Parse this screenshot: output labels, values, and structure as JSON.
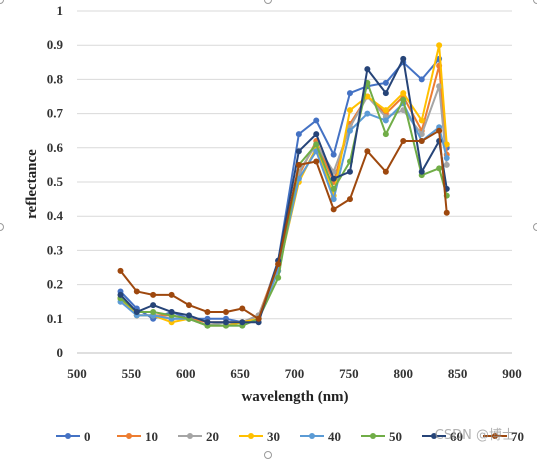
{
  "chart_data": {
    "type": "line",
    "xlabel": "wavelength (nm)",
    "ylabel": "reflectance",
    "xlim": [
      500,
      900
    ],
    "ylim": [
      0,
      1
    ],
    "xticks": [
      "500",
      "550",
      "600",
      "650",
      "700",
      "750",
      "800",
      "850",
      "900"
    ],
    "yticks": [
      "0",
      "0.1",
      "0.2",
      "0.3",
      "0.4",
      "0.5",
      "0.6",
      "0.7",
      "0.8",
      "0.9",
      "1"
    ],
    "grid": "horizontal",
    "legend_position": "bottom",
    "x": [
      540,
      555,
      570,
      587,
      603,
      620,
      637,
      652,
      667,
      685,
      704,
      720,
      736,
      751,
      767,
      784,
      800,
      817,
      833,
      840
    ],
    "series": [
      {
        "name": "0",
        "color": "#4472C4",
        "values": [
          0.18,
          0.13,
          0.1,
          0.12,
          0.1,
          0.1,
          0.1,
          0.09,
          0.1,
          0.27,
          0.64,
          0.68,
          0.58,
          0.76,
          0.78,
          0.79,
          0.85,
          0.8,
          0.86,
          0.6
        ]
      },
      {
        "name": "10",
        "color": "#ED7D31",
        "values": [
          0.16,
          0.11,
          0.11,
          0.11,
          0.1,
          0.09,
          0.09,
          0.09,
          0.11,
          0.26,
          0.52,
          0.62,
          0.5,
          0.67,
          0.75,
          0.7,
          0.75,
          0.65,
          0.84,
          0.58
        ]
      },
      {
        "name": "20",
        "color": "#A5A5A5",
        "values": [
          0.16,
          0.11,
          0.11,
          0.1,
          0.1,
          0.08,
          0.09,
          0.09,
          0.11,
          0.25,
          0.53,
          0.61,
          0.53,
          0.66,
          0.75,
          0.69,
          0.71,
          0.64,
          0.78,
          0.55
        ]
      },
      {
        "name": "30",
        "color": "#FFC000",
        "values": [
          0.16,
          0.11,
          0.11,
          0.09,
          0.1,
          0.08,
          0.08,
          0.09,
          0.1,
          0.24,
          0.5,
          0.6,
          0.46,
          0.71,
          0.75,
          0.71,
          0.76,
          0.68,
          0.9,
          0.61
        ]
      },
      {
        "name": "40",
        "color": "#5B9BD5",
        "values": [
          0.15,
          0.11,
          0.11,
          0.1,
          0.1,
          0.08,
          0.08,
          0.08,
          0.1,
          0.24,
          0.51,
          0.59,
          0.45,
          0.65,
          0.7,
          0.68,
          0.73,
          0.62,
          0.66,
          0.57
        ]
      },
      {
        "name": "50",
        "color": "#70AD47",
        "values": [
          0.16,
          0.12,
          0.12,
          0.11,
          0.1,
          0.08,
          0.08,
          0.08,
          0.1,
          0.22,
          0.55,
          0.61,
          0.48,
          0.56,
          0.79,
          0.64,
          0.74,
          0.52,
          0.54,
          0.46
        ]
      },
      {
        "name": "60",
        "color": "#264478",
        "values": [
          0.17,
          0.12,
          0.14,
          0.12,
          0.11,
          0.09,
          0.09,
          0.09,
          0.09,
          0.27,
          0.59,
          0.64,
          0.51,
          0.53,
          0.83,
          0.76,
          0.86,
          0.53,
          0.62,
          0.48
        ]
      },
      {
        "name": "70",
        "color": "#9E480E",
        "values": [
          0.24,
          0.18,
          0.17,
          0.17,
          0.14,
          0.12,
          0.12,
          0.13,
          0.1,
          0.26,
          0.55,
          0.56,
          0.42,
          0.45,
          0.59,
          0.53,
          0.62,
          0.62,
          0.65,
          0.41
        ]
      }
    ]
  },
  "watermark": "CSDN @博士"
}
